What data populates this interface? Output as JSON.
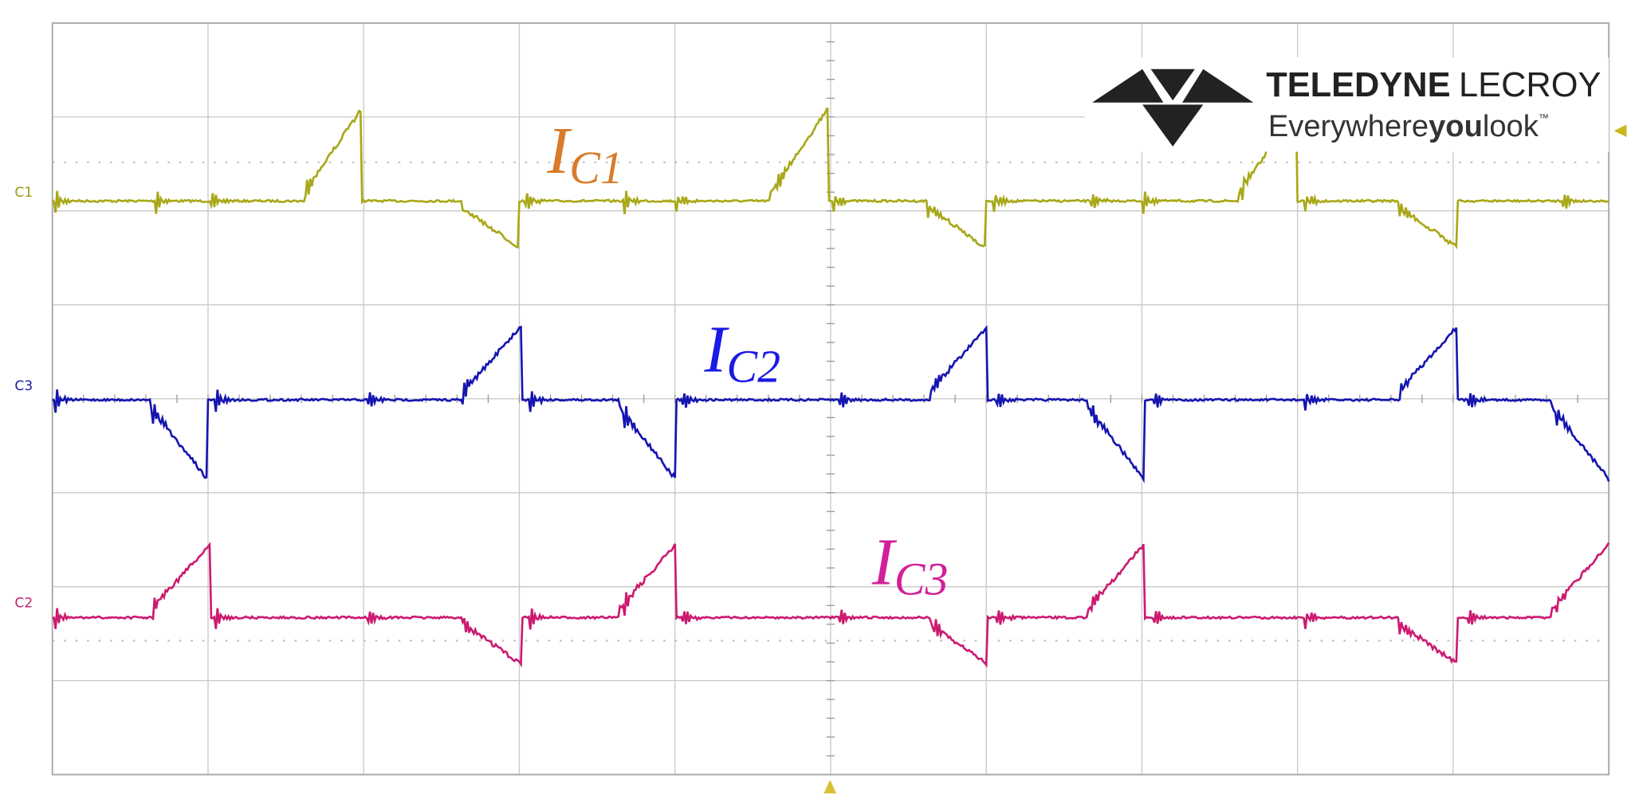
{
  "channel_labels": [
    "C1",
    "C3",
    "C2"
  ],
  "logo": {
    "brand_bold": "TELEDYNE",
    "brand_rest": "LECROY",
    "tagline_a": "Everywhere",
    "tagline_b": "you",
    "tagline_c": "look",
    "tm": "™"
  },
  "annotations": [
    {
      "letter": "I",
      "sub": "C1"
    },
    {
      "letter": "I",
      "sub": "C2"
    },
    {
      "letter": "I",
      "sub": "C3"
    }
  ]
}
